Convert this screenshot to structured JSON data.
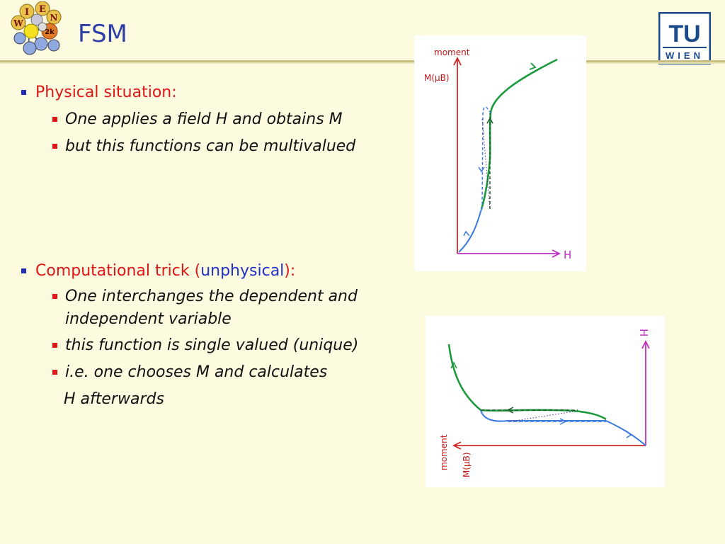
{
  "slide": {
    "title": "FSM",
    "logos": {
      "wien2k": {
        "letters": [
          "I",
          "E",
          "W",
          "N",
          "2k"
        ]
      },
      "tu": {
        "top": "TU",
        "bottom": "WIEN"
      }
    },
    "sections": [
      {
        "heading": "Physical situation:",
        "items": [
          "One applies a field H and obtains M",
          "but this functions can be multivalued"
        ]
      },
      {
        "heading_parts": [
          "Computational trick (",
          "unphysical",
          "):"
        ],
        "items": [
          "One interchanges the dependent and independent variable",
          "this function is single valued  (unique)",
          "i.e. one chooses M and calculates",
          "H afterwards"
        ]
      }
    ],
    "figures": {
      "top": {
        "y_label_1": "moment",
        "y_label_2": "M(μB)",
        "x_label": "H"
      },
      "bottom": {
        "y_label_1": "H",
        "x_label_1": "moment",
        "x_label_2": "M(μB)"
      }
    }
  },
  "colors": {
    "title": "#2e3fa8",
    "heading_red": "#e01515",
    "accent_blue": "#2030c8",
    "curve_green": "#1a9a3a",
    "curve_blue": "#3a7ae0",
    "axis_red": "#d02828",
    "axis_magenta": "#c030c0"
  }
}
